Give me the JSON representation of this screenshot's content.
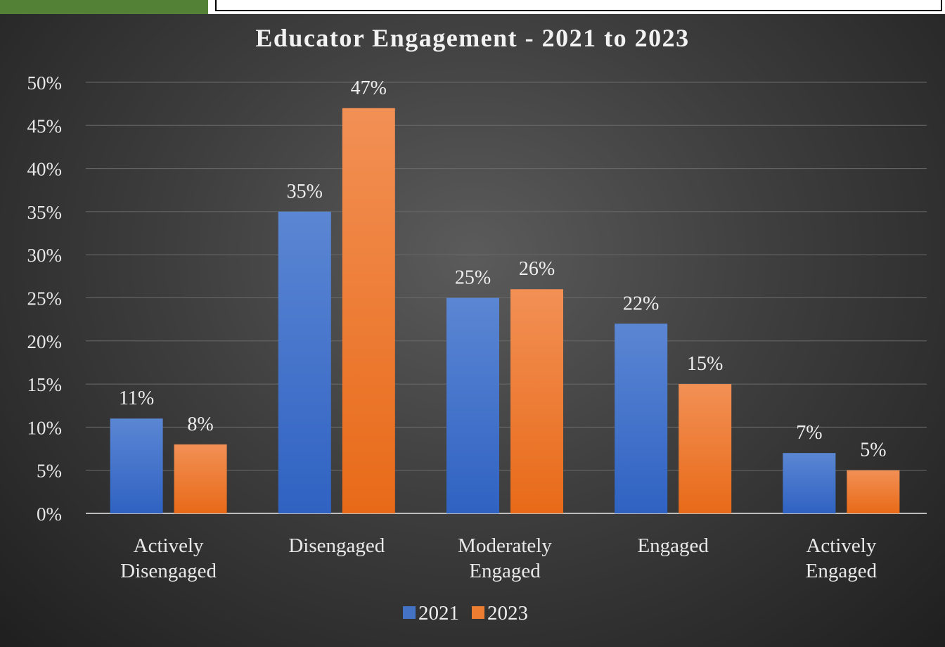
{
  "chart_data": {
    "type": "bar",
    "title": "Educator Engagement - 2021 to 2023",
    "categories": [
      [
        "Actively",
        "Disengaged"
      ],
      [
        "Disengaged"
      ],
      [
        "Moderately",
        "Engaged"
      ],
      [
        "Engaged"
      ],
      [
        "Actively",
        "Engaged"
      ]
    ],
    "series": [
      {
        "name": "2021",
        "color": "#4472c4",
        "values": [
          11,
          35,
          25,
          22,
          7
        ],
        "labels": [
          "11%",
          "35%",
          "25%",
          "22%",
          "7%"
        ]
      },
      {
        "name": "2023",
        "color": "#ed7d31",
        "values": [
          8,
          47,
          26,
          15,
          5
        ],
        "labels": [
          "8%",
          "47%",
          "26%",
          "15%",
          "5%"
        ]
      }
    ],
    "ylim": [
      0,
      50
    ],
    "yticks": [
      "0%",
      "5%",
      "10%",
      "15%",
      "20%",
      "25%",
      "30%",
      "35%",
      "40%",
      "45%",
      "50%"
    ],
    "grid": true,
    "legend_position": "bottom"
  }
}
